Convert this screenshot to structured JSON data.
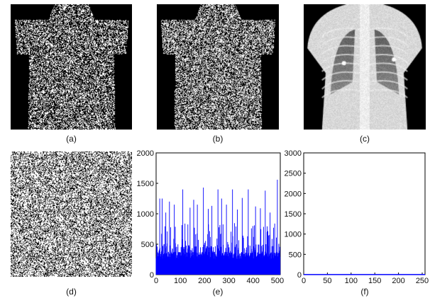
{
  "captions": {
    "a": "(a)",
    "b": "(b)",
    "c": "(c)",
    "d": "(d)",
    "e": "(e)",
    "f": "(f)"
  },
  "chart_data": [
    {
      "panel": "e",
      "type": "bar",
      "title": "",
      "xlabel": "",
      "ylabel": "",
      "xlim": [
        0,
        512
      ],
      "ylim": [
        0,
        2000
      ],
      "xticks": [
        0,
        100,
        200,
        300,
        400,
        500
      ],
      "yticks": [
        0,
        500,
        1000,
        1500,
        2000
      ],
      "series": [
        {
          "color": "#0000ff"
        }
      ],
      "baseline_band": [
        0,
        250
      ],
      "typical_range": [
        250,
        500
      ],
      "peaks": [
        {
          "x": 15,
          "y": 1250
        },
        {
          "x": 25,
          "y": 1250
        },
        {
          "x": 40,
          "y": 1020
        },
        {
          "x": 55,
          "y": 1200
        },
        {
          "x": 75,
          "y": 1150
        },
        {
          "x": 110,
          "y": 1400
        },
        {
          "x": 140,
          "y": 1100
        },
        {
          "x": 155,
          "y": 1230
        },
        {
          "x": 170,
          "y": 1150
        },
        {
          "x": 195,
          "y": 1430
        },
        {
          "x": 215,
          "y": 1080
        },
        {
          "x": 230,
          "y": 1130
        },
        {
          "x": 255,
          "y": 1400
        },
        {
          "x": 270,
          "y": 1250
        },
        {
          "x": 290,
          "y": 1150
        },
        {
          "x": 315,
          "y": 1400
        },
        {
          "x": 335,
          "y": 1070
        },
        {
          "x": 355,
          "y": 1260
        },
        {
          "x": 380,
          "y": 1400
        },
        {
          "x": 410,
          "y": 1120
        },
        {
          "x": 430,
          "y": 1090
        },
        {
          "x": 450,
          "y": 1380
        },
        {
          "x": 470,
          "y": 1020
        },
        {
          "x": 500,
          "y": 1560
        }
      ]
    },
    {
      "panel": "f",
      "type": "bar",
      "title": "",
      "xlabel": "",
      "ylabel": "",
      "xlim": [
        0,
        256
      ],
      "ylim": [
        0,
        3000
      ],
      "xticks": [
        0,
        50,
        100,
        150,
        200,
        250
      ],
      "yticks": [
        0,
        500,
        1000,
        1500,
        2000,
        2500,
        3000
      ],
      "series": [
        {
          "color": "#0000ff"
        }
      ],
      "uniform_value": 2
    }
  ]
}
